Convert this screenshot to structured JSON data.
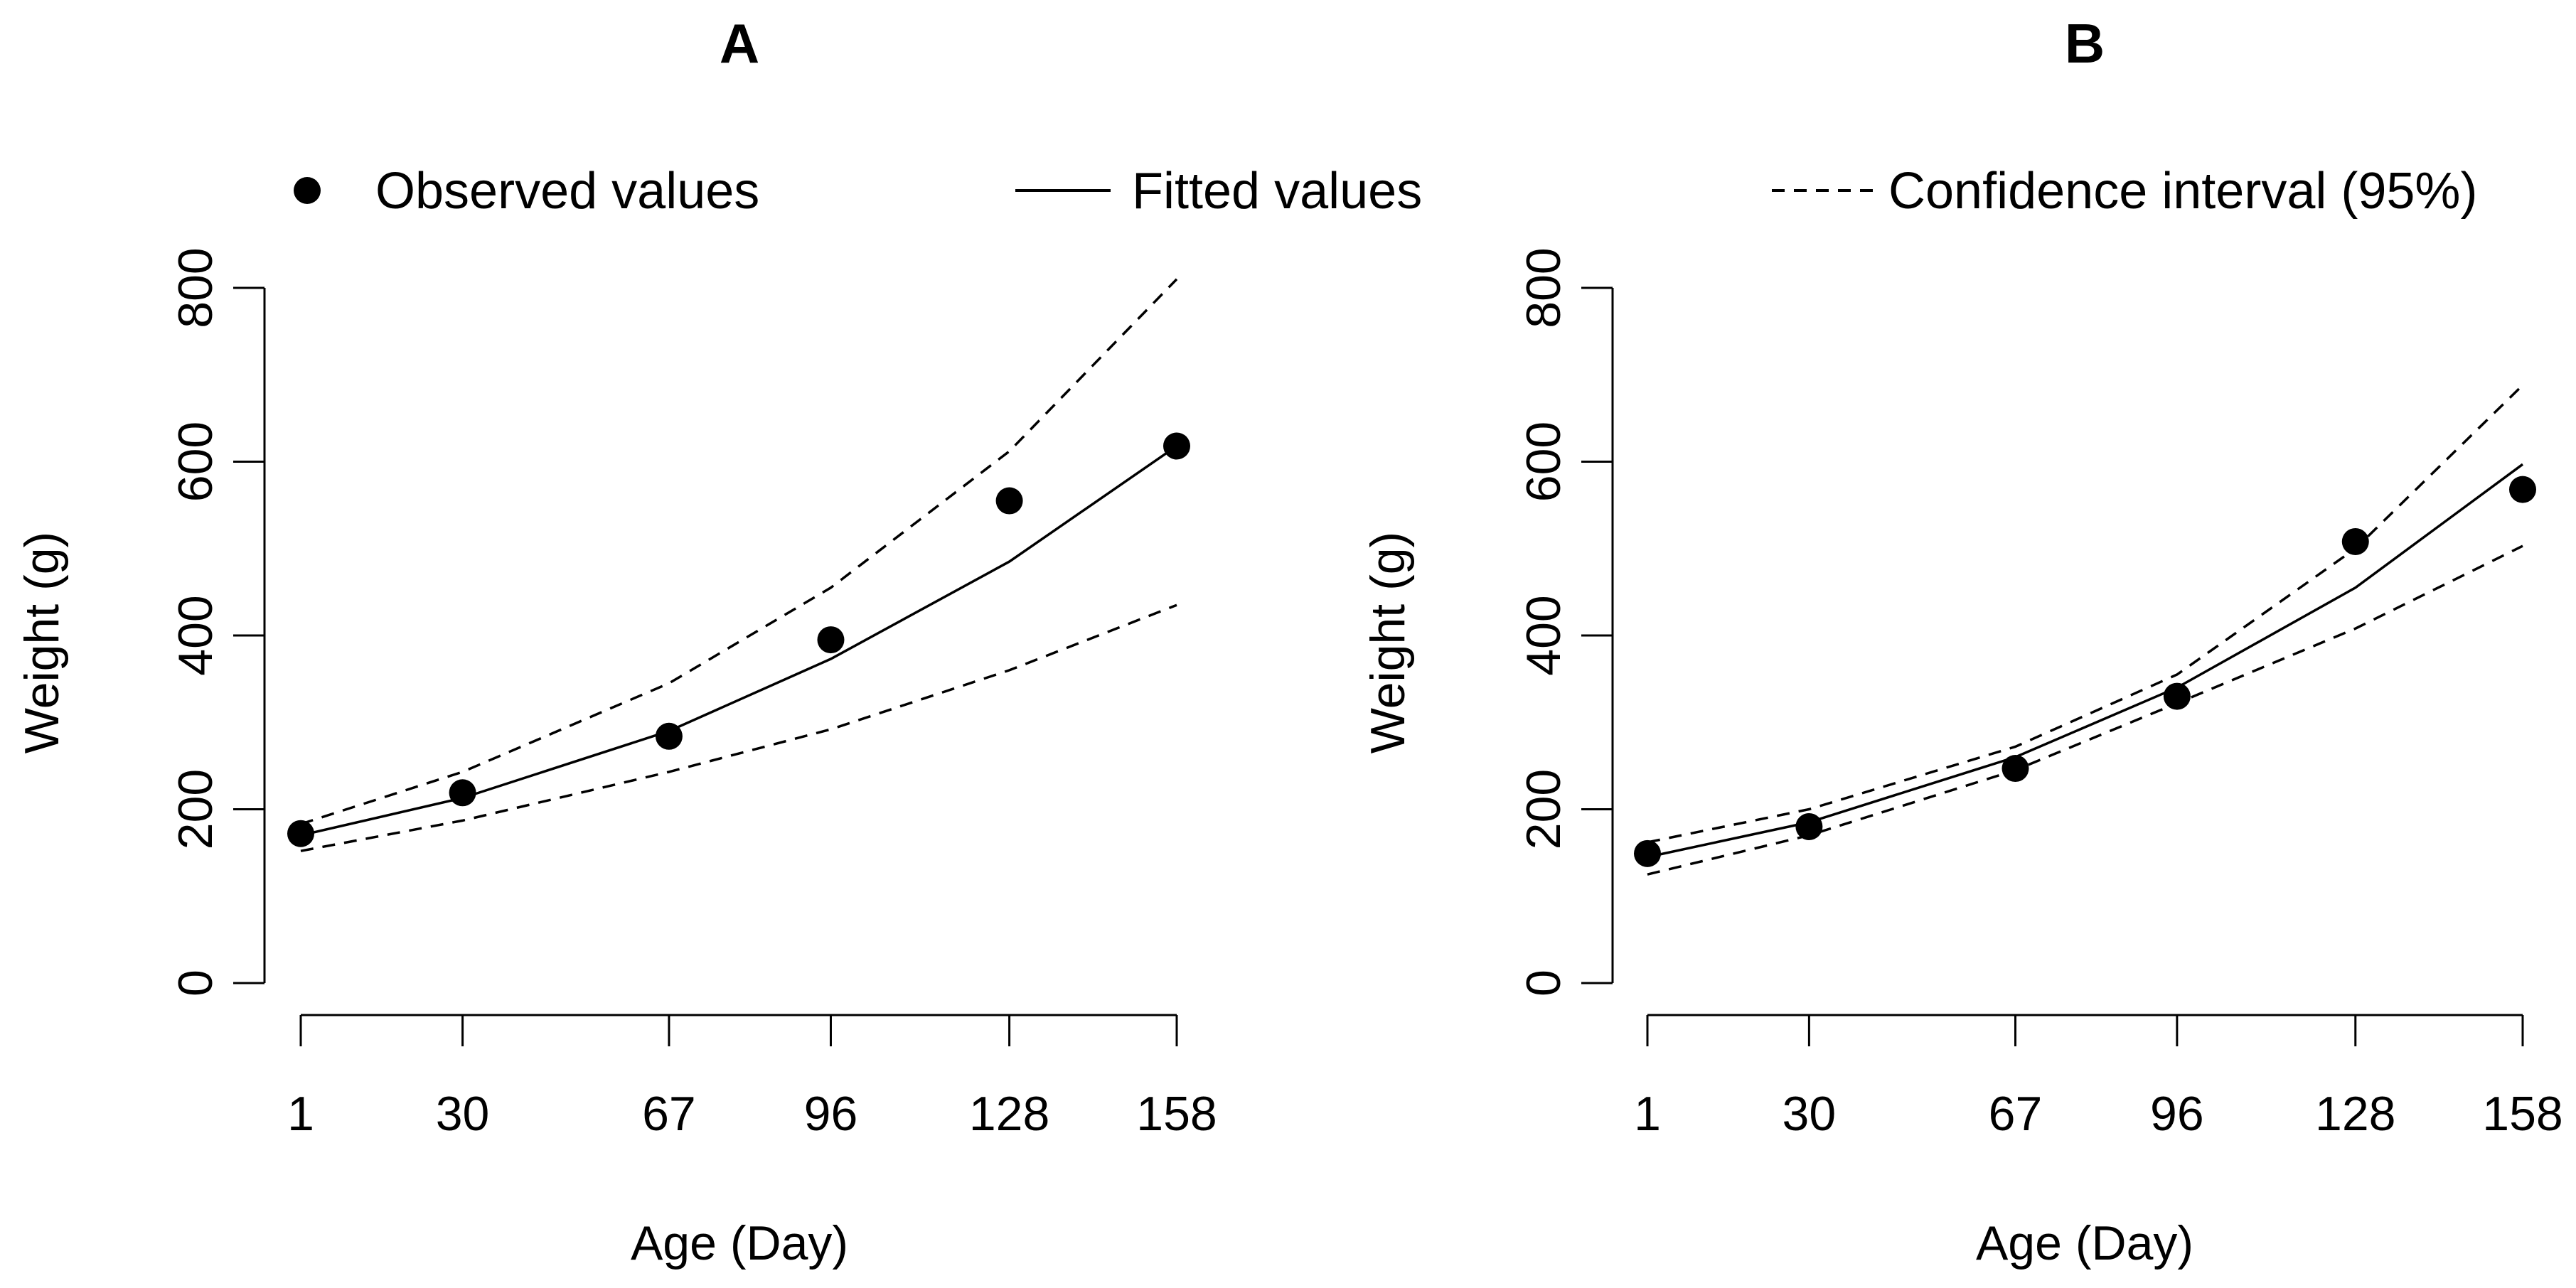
{
  "legend": {
    "observed": "Observed values",
    "fitted": "Fitted values",
    "ci": "Confidence interval (95%)"
  },
  "chart_data": [
    {
      "type": "line",
      "title": "A",
      "xlabel": "Age (Day)",
      "ylabel": "Weight (g)",
      "x": [
        1,
        30,
        67,
        96,
        128,
        158
      ],
      "xticks": [
        "1",
        "30",
        "67",
        "96",
        "128",
        "158"
      ],
      "yticks": [
        0,
        200,
        400,
        600,
        800
      ],
      "ylim": [
        0,
        800
      ],
      "series": [
        {
          "name": "Observed values",
          "style": "points",
          "values": [
            172,
            219,
            284,
            395,
            555,
            618
          ]
        },
        {
          "name": "Fitted values",
          "style": "solid",
          "values": [
            170,
            213,
            290,
            373,
            485,
            618
          ]
        },
        {
          "name": "Confidence interval (95%)",
          "style": "dashed",
          "values": [
            183,
            243,
            345,
            455,
            612,
            810
          ]
        },
        {
          "name": "Confidence interval (95%)",
          "style": "dashed",
          "values": [
            152,
            187,
            243,
            292,
            360,
            435
          ]
        }
      ]
    },
    {
      "type": "line",
      "title": "B",
      "xlabel": "Age (Day)",
      "ylabel": "Weight (g)",
      "x": [
        1,
        30,
        67,
        96,
        128,
        158
      ],
      "xticks": [
        "1",
        "30",
        "67",
        "96",
        "128",
        "158"
      ],
      "yticks": [
        0,
        200,
        400,
        600,
        800
      ],
      "ylim": [
        0,
        800
      ],
      "series": [
        {
          "name": "Observed values",
          "style": "points",
          "values": [
            149,
            180,
            247,
            330,
            508,
            568
          ]
        },
        {
          "name": "Fitted values",
          "style": "solid",
          "values": [
            145,
            185,
            260,
            340,
            455,
            597
          ]
        },
        {
          "name": "Confidence interval (95%)",
          "style": "dashed",
          "values": [
            162,
            200,
            272,
            355,
            500,
            688
          ]
        },
        {
          "name": "Confidence interval (95%)",
          "style": "dashed",
          "values": [
            125,
            170,
            245,
            322,
            408,
            503
          ]
        }
      ]
    }
  ]
}
